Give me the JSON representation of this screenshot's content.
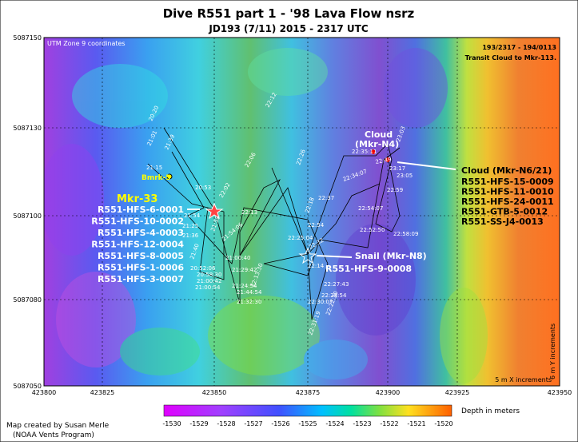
{
  "header": {
    "title": "Dive R551 part 1 - '98 Lava Flow nsrz",
    "subtitle": "JD193 (7/11) 2015 - 2317 UTC"
  },
  "map": {
    "x_axis_labels": [
      "423800",
      "423825",
      "423850",
      "423875",
      "423900",
      "423925",
      "423950"
    ],
    "y_axis_labels": [
      "5087150",
      "5087130",
      "5087100",
      "5087080",
      "5087050"
    ],
    "corner_note": "UTM Zone 9 coordinates",
    "info_lines": [
      "193/2317 - 194/0113",
      "Transit Cloud to Mkr-113."
    ],
    "scale_notes": [
      "5 m X increments",
      "6 m Y increments"
    ],
    "markers": [
      {
        "name": "Bmrk-5"
      },
      {
        "name": "Mkr-33",
        "samples": [
          "R551-HFS-6-0001",
          "R551-HFS-10-0002",
          "R551-HFS-4-0003",
          "R551-HFS-12-0004",
          "R551-HFS-8-0005",
          "R551-HFS-1-0006",
          "R551-HFS-3-0007"
        ]
      },
      {
        "name": "Snail (Mkr-N8)",
        "samples": [
          "R551-HFS-9-0008"
        ]
      },
      {
        "name": "Cloud",
        "subname": "(Mkr-N4)"
      },
      {
        "name": "Cloud (Mkr-N6/21)",
        "samples": [
          "R551-HFS-15-0009",
          "R551-HFS-11-0010",
          "R551-HFS-24-0011",
          "R551-GTB-5-0012",
          "R551-SS-J4-0013"
        ]
      }
    ],
    "time_labels": [
      "20:20",
      "21:01",
      "21:39",
      "21:15",
      "20:53",
      "21:54",
      "21:25",
      "21:36",
      "21:58",
      "21:40",
      "20:52:06",
      "20:58:30",
      "21:00:42",
      "21:00:54",
      "21:00:40",
      "21:29:42",
      "21:24:54",
      "21:44:54",
      "21:32:30",
      "21:54:06",
      "22:13",
      "22:02",
      "22:06",
      "22:12",
      "22:26",
      "22:13:30",
      "22:25:04",
      "22:32",
      "22:14",
      "22:54",
      "22:18",
      "22:37",
      "22:30:07",
      "22:27:43",
      "22:28:54",
      "22:22:30",
      "22:31:19",
      "22:34:07",
      "22:54:07",
      "22:52:50",
      "22:58:09",
      "22:35:11",
      "22:49",
      "23:03",
      "23:05",
      "22:59",
      "23:17"
    ]
  },
  "colorbar": {
    "ticks": [
      "-1530",
      "-1529",
      "-1528",
      "-1527",
      "-1526",
      "-1525",
      "-1524",
      "-1523",
      "-1522",
      "-1521",
      "-1520"
    ],
    "label": "Depth in meters"
  },
  "credit": [
    "Map created by Susan Merle",
    "(NOAA Vents Program)"
  ]
}
